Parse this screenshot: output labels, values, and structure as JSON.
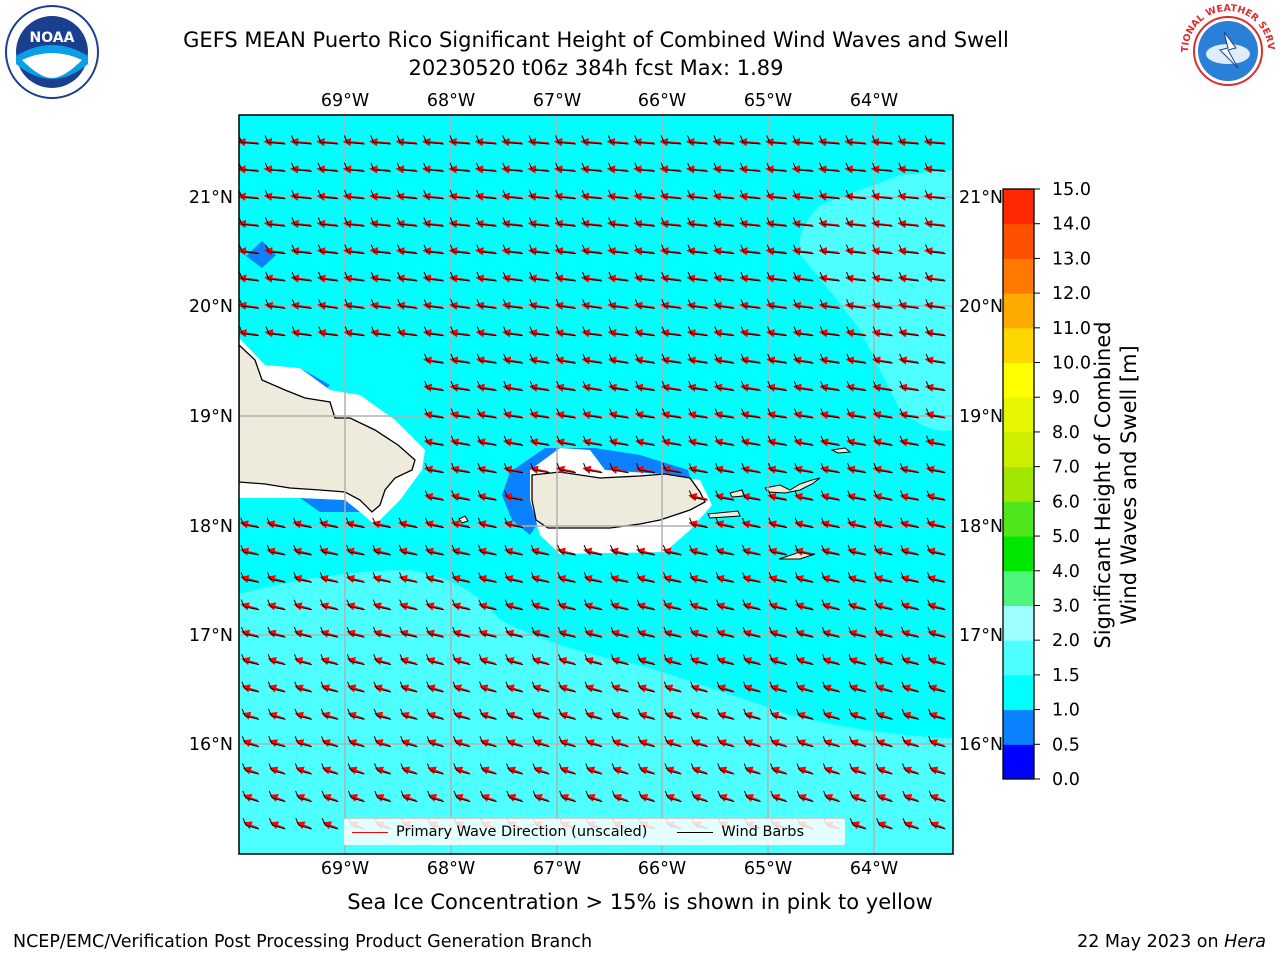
{
  "header": {
    "title_line1": "GEFS MEAN Puerto Rico Significant Height of Combined Wind Waves and Swell",
    "title_line2": "20230520 t06z 384h fcst   Max: 1.89"
  },
  "logos": {
    "left": {
      "text": "NOAA",
      "icon": "noaa-logo"
    },
    "right": {
      "text": "NATIONAL WEATHER SERVICE",
      "icon": "nws-logo"
    }
  },
  "map": {
    "longitude_labels": [
      "69°W",
      "68°W",
      "67°W",
      "66°W",
      "65°W",
      "64°W"
    ],
    "latitude_labels": [
      "21°N",
      "20°N",
      "19°N",
      "18°N",
      "17°N",
      "16°N"
    ],
    "colors": {
      "ocean": "#00ffff",
      "ocean_light": "#4dffff",
      "land": "#efebdc",
      "low_wave": "#0a82ff",
      "arrow": "#ff0000"
    }
  },
  "legend": {
    "wave_direction": "Primary Wave Direction (unscaled)",
    "wind_barbs": "Wind Barbs"
  },
  "colorbar": {
    "label_line1": "Significant Height of Combined",
    "label_line2": "Wind Waves and Swell [m]",
    "ticks": [
      "0.0",
      "0.5",
      "1.0",
      "1.5",
      "2.0",
      "3.0",
      "4.0",
      "5.0",
      "6.0",
      "7.0",
      "8.0",
      "9.0",
      "10.0",
      "11.0",
      "12.0",
      "13.0",
      "14.0",
      "15.0"
    ],
    "colors": [
      "#0000ff",
      "#0a82ff",
      "#00ffff",
      "#4dffff",
      "#a0ffff",
      "#4df57d",
      "#00e600",
      "#4fe61c",
      "#a0e600",
      "#cdf000",
      "#e6f500",
      "#ffff00",
      "#ffd700",
      "#ffaa00",
      "#ff7800",
      "#ff5000",
      "#ff2800"
    ]
  },
  "caption": "Sea Ice Concentration > 15% is shown in pink to yellow",
  "footer": {
    "left": "NCEP/EMC/Verification Post Processing Product Generation Branch",
    "right_date": "22 May 2023 on ",
    "right_machine": "Hera"
  }
}
